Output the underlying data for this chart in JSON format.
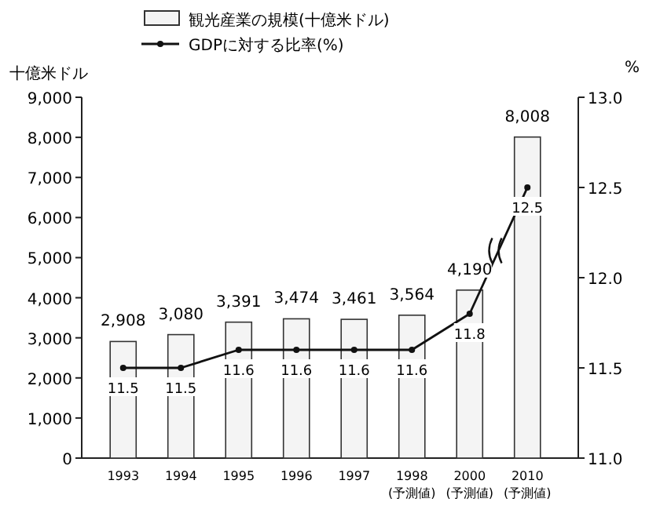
{
  "chart_data": {
    "type": "bar",
    "categories": [
      "1993",
      "1994",
      "1995",
      "1996",
      "1997",
      "1998\n(予測値)",
      "2000\n(予測値)",
      "2010\n(予測値)"
    ],
    "ylabel": "十億米ドル",
    "y2label": "%",
    "ylim": [
      0,
      9000
    ],
    "yticks": [
      0,
      {
        "value": 1000,
        "label": "1,000"
      },
      {
        "value": 2000,
        "label": "2,000"
      },
      {
        "value": 3000,
        "label": "3,000"
      },
      {
        "value": 4000,
        "label": "4,000"
      },
      {
        "value": 5000,
        "label": "5,000"
      },
      {
        "value": 6000,
        "label": "6,000"
      },
      {
        "value": 7000,
        "label": "7,000"
      },
      {
        "value": 8000,
        "label": "8,000"
      },
      {
        "value": 9000,
        "label": "9,000"
      }
    ],
    "y2lim": [
      11.0,
      13.0
    ],
    "y2ticks": [
      {
        "value": 11,
        "label": "11.0"
      },
      11.5,
      {
        "value": 12,
        "label": "12.0"
      },
      12.5,
      {
        "value": 13,
        "label": "13.0"
      }
    ],
    "grid": false,
    "legend": "top left",
    "series": [
      {
        "name": "観光産業の規模(十億米ドル)",
        "color": "#f4f4f4",
        "values": [
          2908,
          3080,
          3391,
          3474,
          3461,
          3564,
          4190,
          8008
        ],
        "value_labels": [
          "2,908",
          "3,080",
          "3,391",
          "3,474",
          "3,461",
          "3,564",
          "4,190",
          "8,008"
        ]
      },
      {
        "name": "GDPに対する比率(%)",
        "type": "line",
        "axis": "y2",
        "color": "#111111",
        "marker": "circle",
        "values": [
          11.5,
          11.5,
          11.6,
          11.6,
          11.6,
          11.6,
          11.8,
          12.5
        ],
        "value_labels": [
          "11.5",
          "11.5",
          "11.6",
          "11.6",
          "11.6",
          "11.6",
          "11.8",
          "12.5"
        ]
      }
    ]
  }
}
